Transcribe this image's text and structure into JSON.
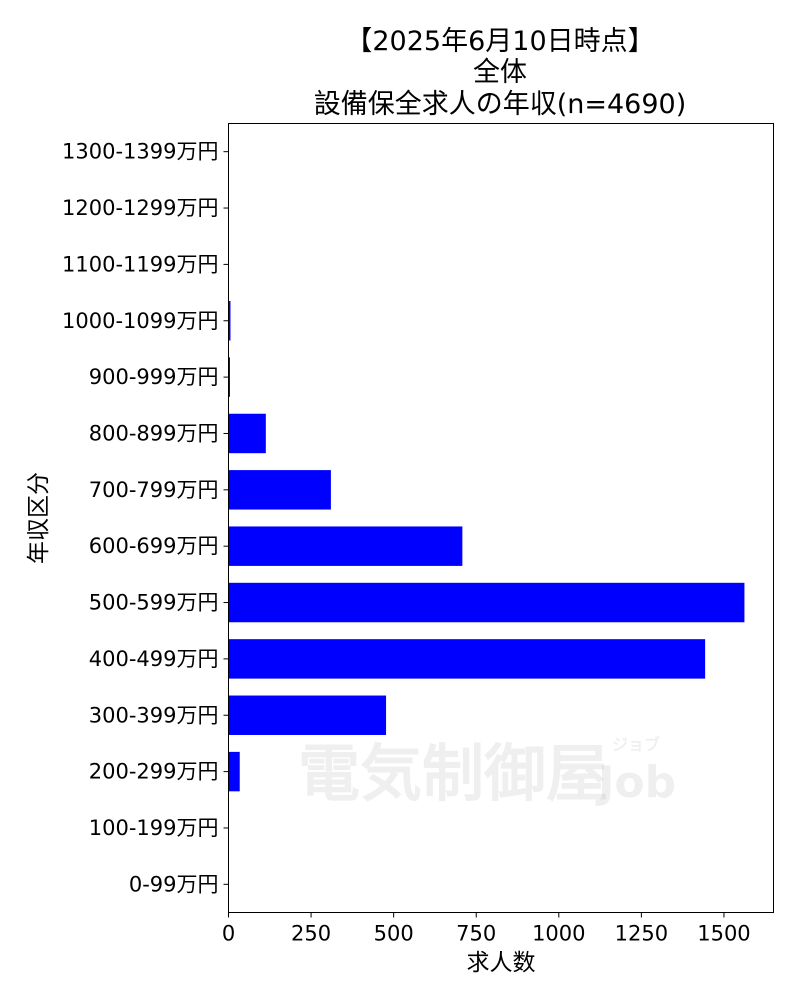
{
  "chart_data": {
    "type": "bar",
    "orientation": "horizontal",
    "title_lines": [
      "【2025年6月10日時点】",
      "全体",
      "設備保全求人の年収(n=4690)"
    ],
    "xlabel": "求人数",
    "ylabel": "年収区分",
    "categories": [
      "0-99万円",
      "100-199万円",
      "200-299万円",
      "300-399万円",
      "400-499万円",
      "500-599万円",
      "600-699万円",
      "700-799万円",
      "800-899万円",
      "900-999万円",
      "1000-1099万円",
      "1100-1199万円",
      "1200-1299万円",
      "1300-1399万円"
    ],
    "values": [
      0,
      0,
      34,
      477,
      1443,
      1562,
      708,
      310,
      113,
      4,
      6,
      0,
      0,
      0
    ],
    "xlim": [
      0,
      1650
    ],
    "xticks": [
      0,
      250,
      500,
      750,
      1000,
      1250,
      1500
    ],
    "bar_color": "#0000ff",
    "grid": false
  },
  "watermark": {
    "main": "電気制御屋",
    "sub_en": "Job",
    "sub_kana": "ジョブ"
  }
}
